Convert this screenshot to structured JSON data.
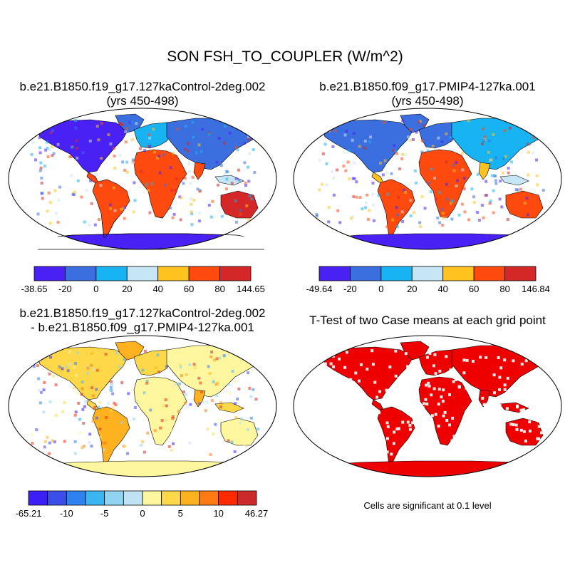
{
  "figure": {
    "title": "SON FSH_TO_COUPLER (W/m^2)",
    "panels": [
      {
        "id": "p1",
        "title_line1": "b.e21.B1850.f19_g17.127kaControl-2deg.002",
        "title_line2": "(yrs 450-498)",
        "colorbar": {
          "labels": [
            "-38.65",
            "-20",
            "0",
            "20",
            "40",
            "60",
            "80",
            "144.65"
          ],
          "colors": [
            "#4a21f5",
            "#3b6fe0",
            "#18b3f2",
            "#c7e6f5",
            "#ffc21f",
            "#ff4a0f",
            "#d42828"
          ]
        }
      },
      {
        "id": "p2",
        "title_line1": "b.e21.B1850.f09_g17.PMIP4-127ka.001",
        "title_line2": "(yrs 450-498)",
        "colorbar": {
          "labels": [
            "-49.64",
            "-20",
            "0",
            "20",
            "40",
            "60",
            "80",
            "146.84"
          ],
          "colors": [
            "#4a21f5",
            "#3b6fe0",
            "#18b3f2",
            "#c7e6f5",
            "#ffc21f",
            "#ff4a0f",
            "#d42828"
          ]
        }
      },
      {
        "id": "p3",
        "title_line1": "b.e21.B1850.f19_g17.127kaControl-2deg.002",
        "title_line2": "- b.e21.B1850.f09_g17.PMIP4-127ka.001",
        "colorbar": {
          "labels": [
            "-65.21",
            "-10",
            "-5",
            "0",
            "5",
            "10",
            "46.27"
          ],
          "colors": [
            "#3b1ff5",
            "#3b4fe8",
            "#2e82f0",
            "#3ab5f2",
            "#8fd4f0",
            "#bfe3f2",
            "#fff6a0",
            "#ffd84a",
            "#ffb21f",
            "#ff7a12",
            "#ff2a00",
            "#cc2a2a"
          ]
        }
      },
      {
        "id": "p4",
        "title_line1": "T-Test of two Case means at each grid point",
        "note": "Cells are significant at 0.1 level",
        "fill_color": "#ee0000"
      }
    ]
  }
}
